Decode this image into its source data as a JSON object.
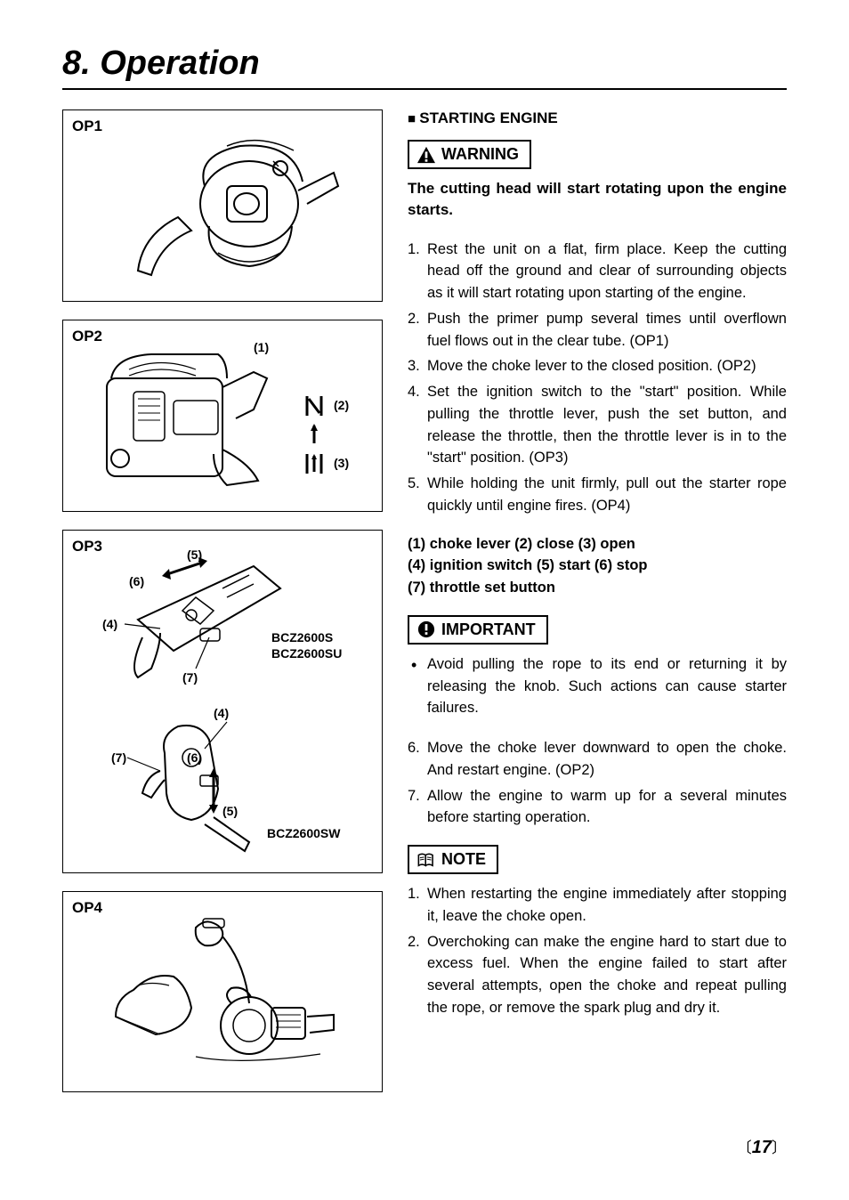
{
  "title": "8. Operation",
  "diagrams": {
    "op1": {
      "label": "OP1"
    },
    "op2": {
      "label": "OP2",
      "annot1": "(1)",
      "annot2": "(2)",
      "annot3": "(3)"
    },
    "op3": {
      "label": "OP3",
      "annot4a": "(4)",
      "annot5a": "(5)",
      "annot6a": "(6)",
      "annot7a": "(7)",
      "modelA": "BCZ2600S",
      "modelA2": "BCZ2600SU",
      "annot4b": "(4)",
      "annot5b": "(5)",
      "annot6b": "(6)",
      "annot7b": "(7)",
      "modelB": "BCZ2600SW"
    },
    "op4": {
      "label": "OP4"
    }
  },
  "sectionHeader": "STARTING ENGINE",
  "warningLabel": "WARNING",
  "warningText": "The cutting head will start rotating upon the engine starts.",
  "steps1": [
    {
      "n": "1.",
      "t": "Rest the unit on a flat, firm place. Keep the cutting head off the ground and clear of surrounding objects as it will start rotating upon starting of the engine."
    },
    {
      "n": "2.",
      "t": "Push the primer pump several times until overflown fuel flows out in the clear tube. (OP1)"
    },
    {
      "n": "3.",
      "t": "Move the choke lever to the closed position. (OP2)"
    },
    {
      "n": "4.",
      "t": "Set the ignition switch to the \"start\" position. While pulling the throttle lever, push the set button, and release the throttle, then the throttle lever is in to the \"start\" position. (OP3)"
    },
    {
      "n": "5.",
      "t": "While holding the unit firmly, pull out the starter rope quickly until engine fires. (OP4)"
    }
  ],
  "legendLines": [
    "(1) choke lever  (2) close  (3) open",
    "(4) ignition switch  (5) start  (6) stop",
    "(7) throttle set button"
  ],
  "importantLabel": "IMPORTANT",
  "importantBullets": [
    "Avoid pulling the rope to its end or returning it by releasing the knob. Such actions can cause starter failures."
  ],
  "steps2": [
    {
      "n": "6.",
      "t": "Move the choke lever downward to open the choke. And restart engine. (OP2)"
    },
    {
      "n": "7.",
      "t": "Allow the engine to warm up for a several minutes before starting operation."
    }
  ],
  "noteLabel": "NOTE",
  "noteSteps": [
    {
      "n": "1.",
      "t": "When restarting the engine immediately after stopping it, leave the choke open."
    },
    {
      "n": "2.",
      "t": "Overchoking can make the engine hard to start due to excess fuel. When the engine failed to start after several attempts, open the choke and repeat pulling the rope, or remove the spark plug and dry it."
    }
  ],
  "pageNumber": "17",
  "colors": {
    "text": "#000000",
    "bg": "#ffffff",
    "border": "#000000"
  },
  "fonts": {
    "title_size": 38,
    "body_size": 16.5,
    "label_size": 17
  }
}
